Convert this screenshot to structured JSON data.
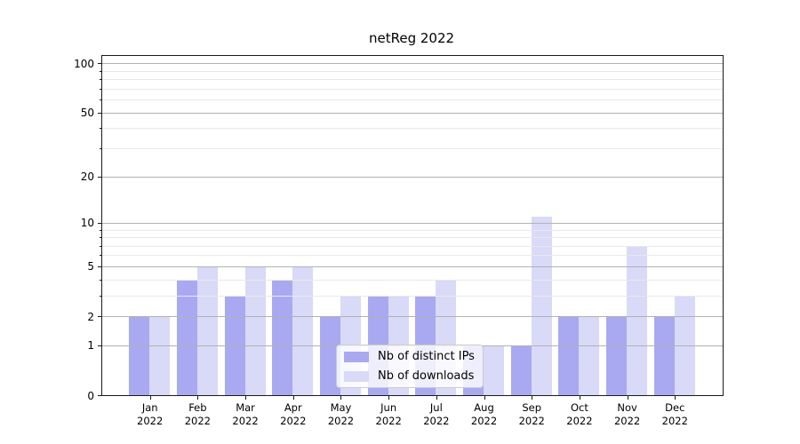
{
  "chart_data": {
    "type": "bar",
    "title": "netReg 2022",
    "categories": [
      "Jan 2022",
      "Feb 2022",
      "Mar 2022",
      "Apr 2022",
      "May 2022",
      "Jun 2022",
      "Jul 2022",
      "Aug 2022",
      "Sep 2022",
      "Oct 2022",
      "Nov 2022",
      "Dec 2022"
    ],
    "series": [
      {
        "name": "Nb of distinct IPs",
        "color": "#a9a9f1",
        "values": [
          2,
          4,
          3,
          4,
          2,
          3,
          3,
          1,
          1,
          2,
          2,
          2
        ]
      },
      {
        "name": "Nb of downloads",
        "color": "#d9d9f8",
        "values": [
          2,
          5,
          5,
          5,
          3,
          3,
          4,
          1,
          11,
          2,
          7,
          3
        ]
      }
    ],
    "xlabel": "",
    "ylabel": "",
    "y_scale": "log1p",
    "ylim": [
      0,
      111
    ],
    "y_ticks": [
      0,
      1,
      2,
      5,
      10,
      20,
      50,
      100
    ],
    "y_minor_ticks": [
      3,
      4,
      6,
      7,
      8,
      9,
      30,
      40,
      60,
      70,
      80,
      90
    ],
    "grid": true,
    "legend_position": "lower center"
  }
}
